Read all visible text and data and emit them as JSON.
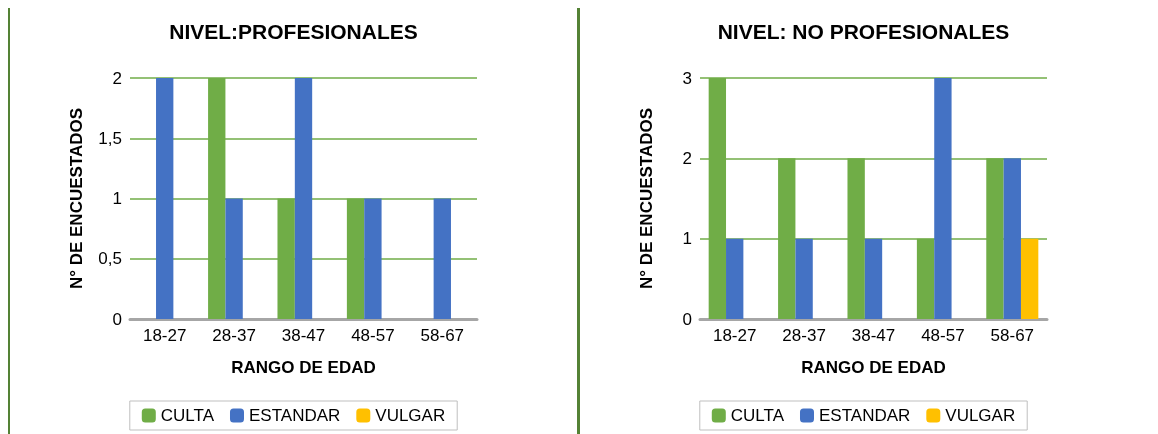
{
  "chart_data": [
    {
      "type": "bar",
      "title": "NIVEL:PROFESIONALES",
      "xlabel": "RANGO DE EDAD",
      "ylabel": "N° DE ENCUESTADOS",
      "categories": [
        "18-27",
        "28-37",
        "38-47",
        "48-57",
        "58-67"
      ],
      "series": [
        {
          "name": "CULTA",
          "color": "#70ad47",
          "values": [
            0,
            2,
            1,
            1,
            0
          ]
        },
        {
          "name": "ESTANDAR",
          "color": "#4472c4",
          "values": [
            2,
            1,
            2,
            1,
            1
          ]
        },
        {
          "name": "VULGAR",
          "color": "#ffc000",
          "values": [
            0,
            0,
            0,
            0,
            0
          ]
        }
      ],
      "ylim": [
        0,
        2
      ],
      "yticks": [
        0,
        {
          "value": 0.5,
          "label": "0,5"
        },
        1,
        {
          "value": 1.5,
          "label": "1,5"
        },
        2
      ],
      "grid": "y",
      "legend": "bottom"
    },
    {
      "type": "bar",
      "title": "NIVEL: NO PROFESIONALES",
      "xlabel": "RANGO DE EDAD",
      "ylabel": "N° DE ENCUESTADOS",
      "categories": [
        "18-27",
        "28-37",
        "38-47",
        "48-57",
        "58-67"
      ],
      "series": [
        {
          "name": "CULTA",
          "color": "#70ad47",
          "values": [
            3,
            2,
            2,
            1,
            2
          ]
        },
        {
          "name": "ESTANDAR",
          "color": "#4472c4",
          "values": [
            1,
            1,
            1,
            3,
            2
          ]
        },
        {
          "name": "VULGAR",
          "color": "#ffc000",
          "values": [
            0,
            0,
            0,
            0,
            1
          ]
        }
      ],
      "ylim": [
        0,
        3
      ],
      "yticks": [
        0,
        1,
        2,
        3
      ],
      "grid": "y",
      "legend": "bottom"
    }
  ]
}
